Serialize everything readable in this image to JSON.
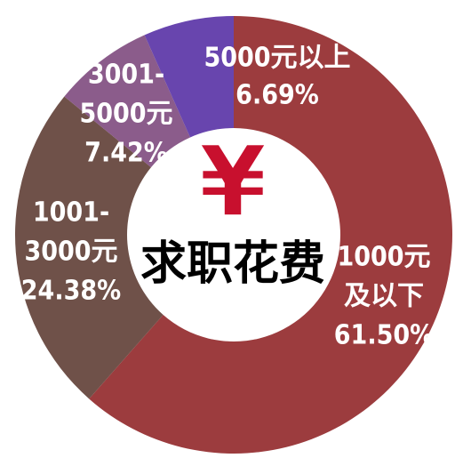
{
  "chart_data": {
    "type": "donut",
    "title": "求职花费",
    "center_symbol": "¥",
    "categories": [
      [
        "1000元",
        "及以下"
      ],
      [
        "1001-",
        "3000元"
      ],
      [
        "3001-",
        "5000元"
      ],
      [
        "5000元以上"
      ]
    ],
    "values": [
      61.5,
      24.38,
      7.42,
      6.69
    ],
    "value_labels": [
      "61.50%",
      "24.38%",
      "7.42%",
      "6.69%"
    ],
    "colors": [
      "#9c3c3e",
      "#6f5149",
      "#8b5c8b",
      "#6845ae"
    ]
  }
}
